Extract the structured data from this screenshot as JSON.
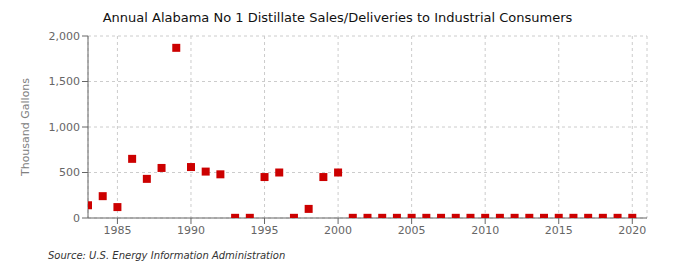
{
  "chart_data": {
    "type": "scatter",
    "title": "Annual Alabama No 1 Distillate Sales/Deliveries to Industrial Consumers",
    "ylabel": "Thousand Gallons",
    "annotations": [
      "Source: U.S. Energy Information Administration"
    ],
    "x": [
      1983,
      1984,
      1985,
      1986,
      1987,
      1988,
      1989,
      1990,
      1991,
      1992,
      1993,
      1994,
      1995,
      1996,
      1997,
      1998,
      1999,
      2000,
      2001,
      2002,
      2003,
      2004,
      2005,
      2006,
      2007,
      2008,
      2009,
      2010,
      2011,
      2012,
      2013,
      2014,
      2015,
      2016,
      2017,
      2018,
      2019,
      2020
    ],
    "values": [
      140,
      240,
      120,
      650,
      430,
      550,
      1870,
      560,
      510,
      480,
      2,
      2,
      450,
      500,
      2,
      100,
      450,
      500,
      2,
      2,
      2,
      2,
      2,
      2,
      2,
      2,
      2,
      2,
      2,
      2,
      2,
      2,
      2,
      2,
      2,
      2,
      2,
      2
    ],
    "color": "#cc0000",
    "marker": "square",
    "xlim": [
      1983,
      2021
    ],
    "xticks": [
      1985,
      1990,
      1995,
      2000,
      2005,
      2010,
      2015,
      2020
    ],
    "ylim": [
      0,
      2000
    ],
    "yticks": [
      0,
      500,
      {
        "value": 1000,
        "label": "1,000"
      },
      {
        "value": 1500,
        "label": "1,500"
      },
      {
        "value": 2000,
        "label": "2,000"
      }
    ],
    "grid": true
  }
}
